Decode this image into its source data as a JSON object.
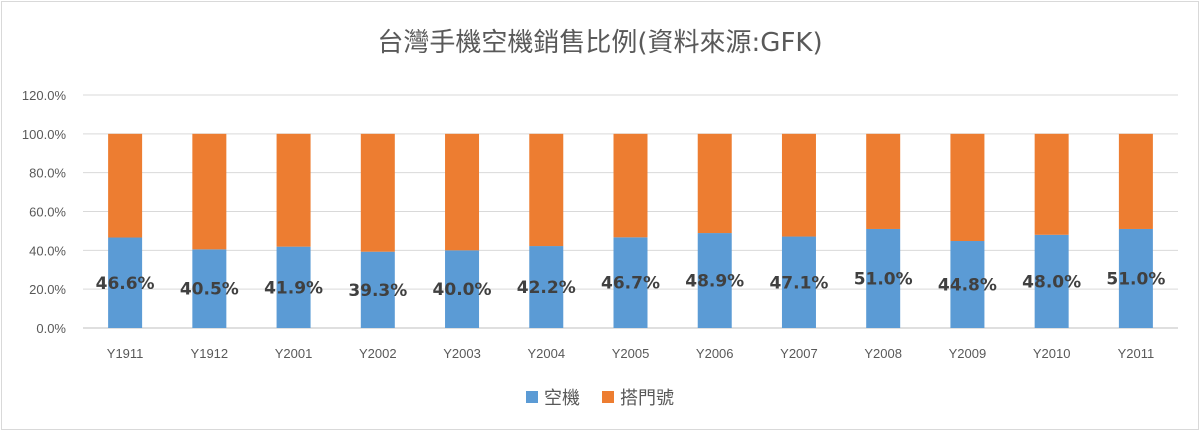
{
  "chart_data": {
    "type": "bar",
    "stacked": true,
    "title": "台灣手機空機銷售比例(資料來源:GFK)",
    "categories": [
      "Y1911",
      "Y1912",
      "Y2001",
      "Y2002",
      "Y2003",
      "Y2004",
      "Y2005",
      "Y2006",
      "Y2007",
      "Y2008",
      "Y2009",
      "Y2010",
      "Y2011"
    ],
    "series": [
      {
        "name": "空機",
        "color": "#5b9bd5",
        "values": [
          46.6,
          40.5,
          41.9,
          39.3,
          40.0,
          42.2,
          46.7,
          48.9,
          47.1,
          51.0,
          44.8,
          48.0,
          51.0
        ]
      },
      {
        "name": "搭門號",
        "color": "#ed7d31",
        "values": [
          53.4,
          59.5,
          58.1,
          60.7,
          60.0,
          57.8,
          53.3,
          51.1,
          52.9,
          49.0,
          55.2,
          52.0,
          49.0
        ]
      }
    ],
    "data_labels": [
      "46.6%",
      "40.5%",
      "41.9%",
      "39.3%",
      "40.0%",
      "42.2%",
      "46.7%",
      "48.9%",
      "47.1%",
      "51.0%",
      "44.8%",
      "48.0%",
      "51.0%"
    ],
    "y_ticks": [
      "0.0%",
      "20.0%",
      "40.0%",
      "60.0%",
      "80.0%",
      "100.0%",
      "120.0%"
    ],
    "ylim": [
      0,
      120
    ],
    "grid": true,
    "legend_position": "bottom"
  }
}
